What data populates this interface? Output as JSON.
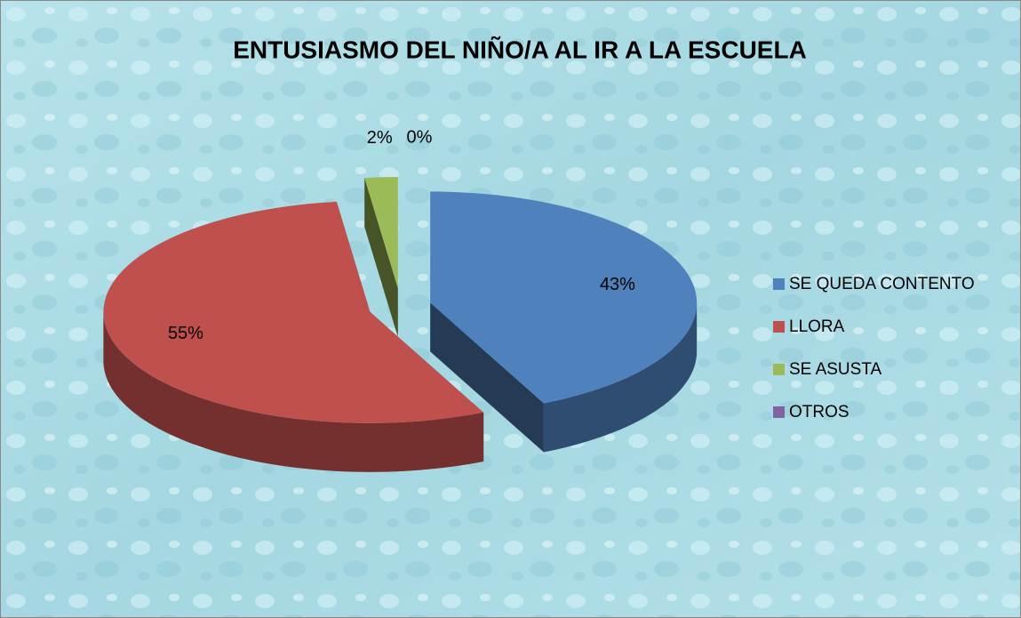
{
  "chart_data": {
    "type": "pie3d",
    "title": "ENTUSIASMO DEL NIÑO/A AL IR A LA ESCUELA",
    "categories": [
      "SE QUEDA CONTENTO",
      "LLORA",
      "SE ASUSTA",
      "OTROS"
    ],
    "values": [
      43,
      55,
      2,
      0
    ],
    "value_labels": [
      "43%",
      "55%",
      "2%",
      "0%"
    ],
    "colors": [
      "#4f81bd",
      "#c0504d",
      "#9bbb59",
      "#8064a2"
    ],
    "legend": "right"
  }
}
